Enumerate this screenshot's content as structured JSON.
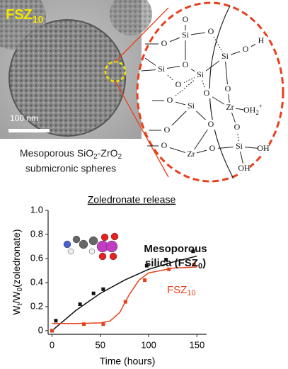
{
  "figure": {
    "tem_label": [
      "FSZ",
      "10"
    ],
    "scale_bar": "100 nm",
    "caption": [
      [
        "Mesoporous SiO",
        "2",
        "-ZrO",
        "2"
      ],
      [
        "submicronic spheres"
      ]
    ],
    "structure_atoms": [
      "O",
      "Si",
      "O",
      "O",
      "Si",
      "O",
      "Si",
      "O",
      "H",
      "O",
      "Si",
      "O",
      "O",
      "Zr",
      [
        "OH",
        "2",
        "+"
      ],
      "O",
      "Si",
      "O",
      "O",
      "Zr",
      "O",
      "O",
      "Si",
      "OH",
      "OH",
      "O"
    ]
  },
  "chart_data": {
    "type": "scatter",
    "title": "Zoledronate release",
    "x_label": "Time (hours)",
    "y_label": [
      "W",
      "t",
      "/W",
      "0",
      "(zoledronate)"
    ],
    "xlim": [
      -4,
      160
    ],
    "ylim": [
      -0.03,
      1.0
    ],
    "xticks": [
      0,
      50,
      100,
      150
    ],
    "yticks": [
      0,
      0.2,
      0.4,
      0.6,
      0.8,
      {
        "value": 1,
        "label": "1.0"
      }
    ],
    "series": [
      {
        "name_parts": [
          "Mesoporous",
          "silica (FSZ",
          "0",
          ")"
        ],
        "color": "#111111",
        "x": [
          0,
          4,
          29,
          43,
          53,
          98,
          118,
          146
        ],
        "values": [
          0,
          0.083,
          0.22,
          0.31,
          0.345,
          0.54,
          0.59,
          0.66
        ],
        "fit_x": [
          0,
          25,
          50,
          75,
          100,
          125,
          150
        ],
        "fit_values": [
          0,
          0.17,
          0.31,
          0.42,
          0.51,
          0.57,
          0.62
        ]
      },
      {
        "name_parts": [
          "FSZ",
          "10"
        ],
        "color": "#e8401c",
        "x": [
          0,
          33,
          53,
          76,
          96,
          121,
          147
        ],
        "values": [
          0,
          0.054,
          0.054,
          0.24,
          0.42,
          0.51,
          0.55
        ],
        "fit_x": [
          0,
          25,
          50,
          60,
          70,
          80,
          90,
          100,
          125,
          150
        ],
        "fit_values": [
          0.06,
          0.06,
          0.065,
          0.08,
          0.15,
          0.3,
          0.42,
          0.48,
          0.52,
          0.53
        ]
      }
    ]
  }
}
